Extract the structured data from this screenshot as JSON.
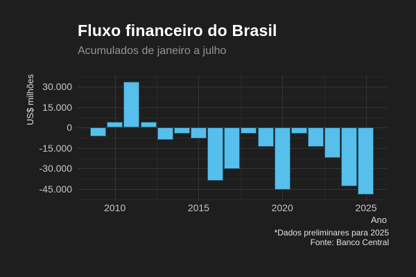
{
  "header": {
    "title": "Fluxo financeiro do Brasil",
    "subtitle": "Acumulados de janeiro a julho"
  },
  "footer": {
    "note": "*Dados preliminares para 2025",
    "source": "Fonte: Banco Central"
  },
  "colors": {
    "background": "#1e1e1e",
    "bar": "#56bfec",
    "title_text": "#ffffff",
    "subtitle_text": "#949494",
    "axis_text": "#c6c6c6",
    "caption_text": "#e2e2e2",
    "grid_major": "#343434",
    "grid_minor": "#282828"
  },
  "chart_data": {
    "type": "bar",
    "title": "Fluxo financeiro do Brasil",
    "subtitle": "Acumulados de janeiro a julho",
    "xlabel": "Ano",
    "ylabel": "US$ milhões",
    "unit": "US$ milhões",
    "x": [
      2009,
      2010,
      2011,
      2012,
      2013,
      2014,
      2015,
      2016,
      2017,
      2018,
      2019,
      2020,
      2021,
      2022,
      2023,
      2024,
      2025
    ],
    "values": [
      -6500,
      4300,
      33800,
      4400,
      -9000,
      -4500,
      -8000,
      -39300,
      -30200,
      -4200,
      -14100,
      -45500,
      -4200,
      -14300,
      -22400,
      -43000,
      -49300
    ],
    "ylim": [
      -52500,
      37500
    ],
    "yticks": [
      30000,
      15000,
      0,
      -15000,
      -30000,
      -45000
    ],
    "ytick_labels": [
      "30.000",
      "15.000",
      "0",
      "-15.000",
      "-30.000",
      "-45.000"
    ],
    "yticks_minor": [
      37500,
      22500,
      7500,
      -7500,
      -22500,
      -37500,
      -52500
    ],
    "xticks": [
      2010,
      2015,
      2020,
      2025
    ],
    "xtick_labels": [
      "2010",
      "2015",
      "2020",
      "2025"
    ],
    "xticks_minor": [
      2012.5,
      2017.5,
      2022.5
    ],
    "grid": "major+minor",
    "legend": "none",
    "bar_color": "#56bfec"
  }
}
